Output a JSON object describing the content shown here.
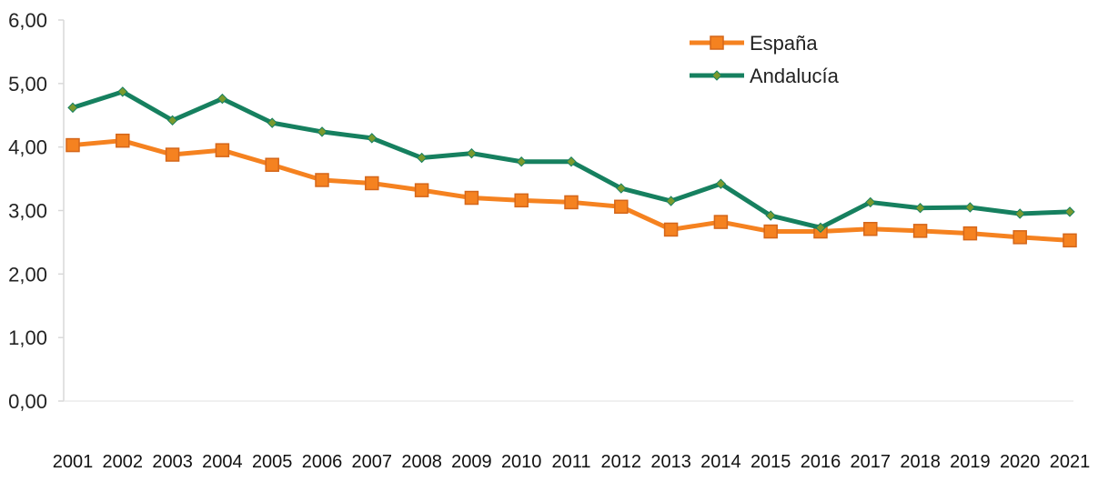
{
  "chart_data": {
    "type": "line",
    "title": "",
    "xlabel": "",
    "ylabel": "",
    "categories": [
      "2001",
      "2002",
      "2003",
      "2004",
      "2005",
      "2006",
      "2007",
      "2008",
      "2009",
      "2010",
      "2011",
      "2012",
      "2013",
      "2014",
      "2015",
      "2016",
      "2017",
      "2018",
      "2019",
      "2020",
      "2021"
    ],
    "ylim": [
      0,
      6
    ],
    "yticks": [
      {
        "value": 0,
        "label": "0,00"
      },
      {
        "value": 1,
        "label": "1,00"
      },
      {
        "value": 2,
        "label": "2,00"
      },
      {
        "value": 3,
        "label": "3,00"
      },
      {
        "value": 4,
        "label": "4,00"
      },
      {
        "value": 5,
        "label": "5,00"
      },
      {
        "value": 6,
        "label": "6,00"
      }
    ],
    "grid": false,
    "legend_position": "top-right",
    "series": [
      {
        "name": "España",
        "color": "#F58220",
        "marker": "square",
        "values": [
          4.03,
          4.1,
          3.88,
          3.95,
          3.72,
          3.48,
          3.43,
          3.32,
          3.2,
          3.16,
          3.13,
          3.06,
          2.7,
          2.82,
          2.67,
          2.67,
          2.71,
          2.68,
          2.64,
          2.58,
          2.53
        ]
      },
      {
        "name": "Andalucía",
        "color": "#16805F",
        "marker": "diamond",
        "values": [
          4.62,
          4.87,
          4.42,
          4.76,
          4.38,
          4.24,
          4.14,
          3.83,
          3.9,
          3.77,
          3.77,
          3.35,
          3.15,
          3.42,
          2.92,
          2.73,
          3.13,
          3.04,
          3.05,
          2.95,
          2.98
        ]
      }
    ]
  }
}
